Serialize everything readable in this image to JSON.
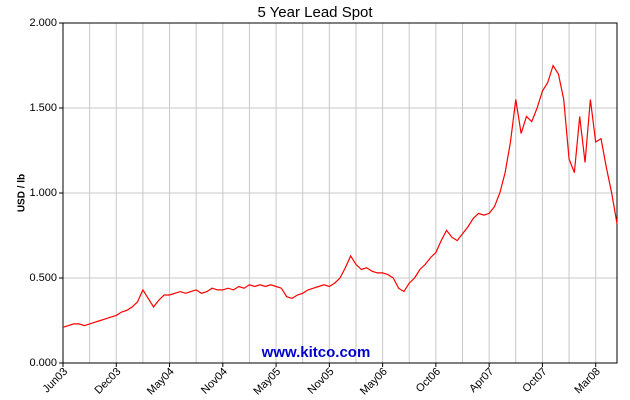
{
  "chart_data": {
    "type": "line",
    "title": "5 Year Lead Spot",
    "ylabel": "USD / lb",
    "watermark": "www.kitco.com",
    "categories": [
      "Jun03",
      null,
      null,
      null,
      null,
      null,
      null,
      null,
      null,
      null,
      "Dec03",
      null,
      null,
      null,
      null,
      null,
      null,
      null,
      null,
      null,
      "May04",
      null,
      null,
      null,
      null,
      null,
      null,
      null,
      null,
      null,
      "Nov04",
      null,
      null,
      null,
      null,
      null,
      null,
      null,
      null,
      null,
      "May05",
      null,
      null,
      null,
      null,
      null,
      null,
      null,
      null,
      null,
      "Nov05",
      null,
      null,
      null,
      null,
      null,
      null,
      null,
      null,
      null,
      "May06",
      null,
      null,
      null,
      null,
      null,
      null,
      null,
      null,
      null,
      "Oct06",
      null,
      null,
      null,
      null,
      null,
      null,
      null,
      null,
      null,
      "Apr07",
      null,
      null,
      null,
      null,
      null,
      null,
      null,
      null,
      null,
      "Oct07",
      null,
      null,
      null,
      null,
      null,
      null,
      null,
      null,
      null,
      "Mar08",
      null,
      null,
      null,
      null
    ],
    "series": [
      {
        "color": "#ff0000",
        "values": [
          0.21,
          0.22,
          0.23,
          0.23,
          0.22,
          0.23,
          0.24,
          0.25,
          0.26,
          0.27,
          0.28,
          0.3,
          0.31,
          0.33,
          0.36,
          0.43,
          0.38,
          0.33,
          0.37,
          0.4,
          0.4,
          0.41,
          0.42,
          0.41,
          0.42,
          0.43,
          0.41,
          0.42,
          0.44,
          0.43,
          0.43,
          0.44,
          0.43,
          0.45,
          0.44,
          0.46,
          0.45,
          0.46,
          0.45,
          0.46,
          0.45,
          0.44,
          0.39,
          0.38,
          0.4,
          0.41,
          0.43,
          0.44,
          0.45,
          0.46,
          0.45,
          0.47,
          0.5,
          0.56,
          0.63,
          0.58,
          0.55,
          0.56,
          0.54,
          0.53,
          0.53,
          0.52,
          0.5,
          0.44,
          0.42,
          0.47,
          0.5,
          0.55,
          0.58,
          0.62,
          0.65,
          0.72,
          0.78,
          0.74,
          0.72,
          0.76,
          0.8,
          0.85,
          0.88,
          0.87,
          0.88,
          0.92,
          1.0,
          1.12,
          1.3,
          1.55,
          1.35,
          1.45,
          1.42,
          1.5,
          1.6,
          1.65,
          1.75,
          1.7,
          1.55,
          1.2,
          1.12,
          1.45,
          1.18,
          1.55,
          1.3,
          1.32,
          1.15,
          1.0,
          0.82
        ]
      }
    ],
    "ylim": [
      0,
      2
    ],
    "yticks": [
      {
        "value": 0,
        "label": "0.000"
      },
      {
        "value": 0.5,
        "label": "0.500"
      },
      {
        "value": 1,
        "label": "1.000"
      },
      {
        "value": 1.5,
        "label": "1.500"
      },
      {
        "value": 2,
        "label": "2.000"
      }
    ],
    "grid": true
  }
}
